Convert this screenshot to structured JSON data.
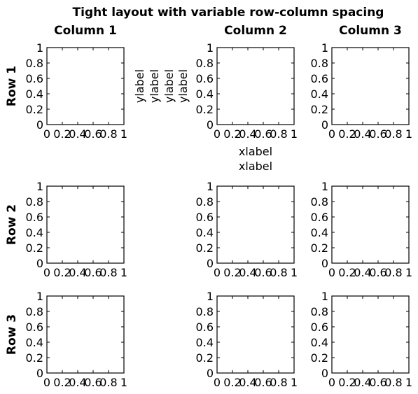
{
  "figure": {
    "title": "Tight layout with variable row-column spacing",
    "columns": [
      "Column 1",
      "Column 2",
      "Column 3"
    ],
    "rows": [
      "Row 1",
      "Row 2",
      "Row 3"
    ]
  },
  "chart_data": {
    "type": "scatter",
    "grid": false,
    "xlim": [
      0,
      1
    ],
    "ylim": [
      0,
      1
    ],
    "xticks": [
      "0",
      "0.2",
      "0.4",
      "0.6",
      "0.8",
      "1"
    ],
    "yticks": [
      "0",
      "0.2",
      "0.4",
      "0.6",
      "0.8",
      "1"
    ],
    "series": [],
    "extra_labels": {
      "ylabels": [
        "ylabel",
        "ylabel",
        "ylabel",
        "ylabel"
      ],
      "xlabels": [
        "xlabel",
        "xlabel"
      ]
    }
  }
}
